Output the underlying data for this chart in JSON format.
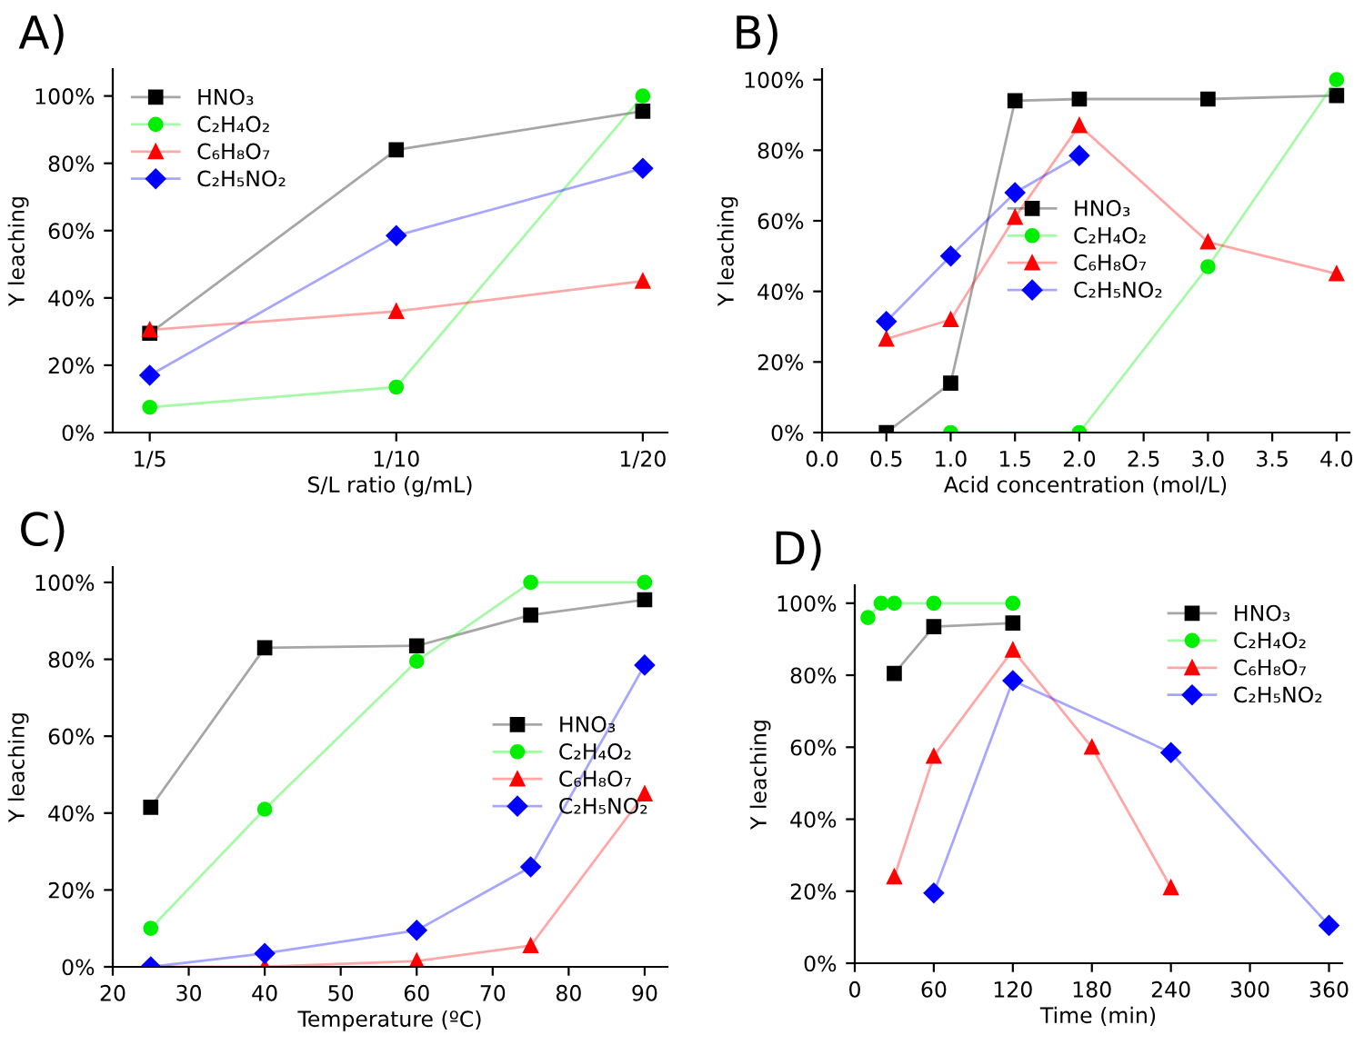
{
  "chart_data": [
    {
      "type": "line",
      "title": "A)",
      "xlabel": "S/L ratio (g/mL)",
      "ylabel": "Y leaching",
      "categories": [
        "1/5",
        "1/10",
        "1/20"
      ],
      "ylim": [
        0,
        108
      ],
      "yticks": [
        {
          "value": 0,
          "label": "0%"
        },
        {
          "value": 20,
          "label": "20%"
        },
        {
          "value": 40,
          "label": "40%"
        },
        {
          "value": 60,
          "label": "60%"
        },
        {
          "value": 80,
          "label": "80%"
        },
        {
          "value": 100,
          "label": "100%"
        }
      ],
      "legend": "top left",
      "grid": false,
      "series": [
        {
          "name": "HNO₃",
          "color": "#000000",
          "marker": "square",
          "values": [
            29.5,
            84,
            95.5
          ]
        },
        {
          "name": "C₂H₄O₂",
          "color": "#00ee00",
          "marker": "circle",
          "values": [
            7.5,
            13.5,
            100
          ]
        },
        {
          "name": "C₆H₈O₇",
          "color": "#ff0000",
          "marker": "triangle",
          "values": [
            30.5,
            36,
            45
          ]
        },
        {
          "name": "C₂H₅NO₂",
          "color": "#0000ff",
          "marker": "diamond",
          "values": [
            17,
            58.5,
            78.5
          ]
        }
      ]
    },
    {
      "type": "line",
      "title": "B)",
      "xlabel": "Acid concentration (mol/L)",
      "ylabel": "Y leaching",
      "xlim": [
        0,
        4.1
      ],
      "xticks": [
        {
          "value": 0,
          "label": "0.0"
        },
        {
          "value": 0.5,
          "label": "0.5"
        },
        {
          "value": 1,
          "label": "1.0"
        },
        {
          "value": 1.5,
          "label": "1.5"
        },
        {
          "value": 2,
          "label": "2.0"
        },
        {
          "value": 2.5,
          "label": "2.5"
        },
        {
          "value": 3,
          "label": "3.0"
        },
        {
          "value": 3.5,
          "label": "3.5"
        },
        {
          "value": 4,
          "label": "4.0"
        }
      ],
      "ylim": [
        0,
        103
      ],
      "yticks": [
        {
          "value": 0,
          "label": "0%"
        },
        {
          "value": 20,
          "label": "20%"
        },
        {
          "value": 40,
          "label": "40%"
        },
        {
          "value": 60,
          "label": "60%"
        },
        {
          "value": 80,
          "label": "80%"
        },
        {
          "value": 100,
          "label": "100%"
        }
      ],
      "legend": "center",
      "grid": false,
      "series": [
        {
          "name": "HNO₃",
          "color": "#000000",
          "marker": "square",
          "x": [
            0.5,
            1,
            1.5,
            2,
            3,
            4
          ],
          "values": [
            0,
            14,
            94,
            94.5,
            94.5,
            95.5
          ]
        },
        {
          "name": "C₂H₄O₂",
          "color": "#00ee00",
          "marker": "circle",
          "x": [
            1,
            2,
            3,
            4
          ],
          "values": [
            0,
            0,
            47,
            100
          ]
        },
        {
          "name": "C₆H₈O₇",
          "color": "#ff0000",
          "marker": "triangle",
          "x": [
            0.5,
            1,
            1.5,
            2,
            3,
            4
          ],
          "values": [
            26.5,
            32,
            61,
            87,
            54,
            45
          ]
        },
        {
          "name": "C₂H₅NO₂",
          "color": "#0000ff",
          "marker": "diamond",
          "x": [
            0.5,
            1,
            1.5,
            2
          ],
          "values": [
            31.5,
            50,
            68,
            78.5
          ]
        }
      ]
    },
    {
      "type": "line",
      "title": "C)",
      "xlabel": "Temperature (ºC)",
      "ylabel": "Y leaching",
      "xlim": [
        20,
        93
      ],
      "xticks": [
        20,
        30,
        40,
        50,
        60,
        70,
        80,
        90
      ],
      "ylim": [
        0,
        104
      ],
      "yticks": [
        {
          "value": 0,
          "label": "0%"
        },
        {
          "value": 20,
          "label": "20%"
        },
        {
          "value": 40,
          "label": "40%"
        },
        {
          "value": 60,
          "label": "60%"
        },
        {
          "value": 80,
          "label": "80%"
        },
        {
          "value": 100,
          "label": "100%"
        }
      ],
      "legend": "center right",
      "grid": false,
      "series": [
        {
          "name": "HNO₃",
          "color": "#000000",
          "marker": "square",
          "x": [
            25,
            40,
            60,
            75,
            90
          ],
          "values": [
            41.5,
            83,
            83.5,
            91.5,
            95.5
          ]
        },
        {
          "name": "C₂H₄O₂",
          "color": "#00ee00",
          "marker": "circle",
          "x": [
            25,
            40,
            60,
            75,
            90
          ],
          "values": [
            10,
            41,
            79.5,
            100,
            100
          ]
        },
        {
          "name": "C₆H₈O₇",
          "color": "#ff0000",
          "marker": "triangle",
          "x": [
            25,
            40,
            60,
            75,
            90
          ],
          "values": [
            0,
            0,
            1.5,
            5.5,
            45
          ]
        },
        {
          "name": "C₂H₅NO₂",
          "color": "#0000ff",
          "marker": "diamond",
          "x": [
            25,
            40,
            60,
            75,
            90
          ],
          "values": [
            0,
            3.5,
            9.5,
            26,
            78.5
          ]
        }
      ]
    },
    {
      "type": "line",
      "title": "D)",
      "xlabel": "Time (min)",
      "ylabel": "Y leaching",
      "xlim": [
        0,
        370
      ],
      "xticks": [
        0,
        60,
        120,
        180,
        240,
        300,
        360
      ],
      "ylim": [
        0,
        105
      ],
      "yticks": [
        {
          "value": 0,
          "label": "0%"
        },
        {
          "value": 20,
          "label": "20%"
        },
        {
          "value": 40,
          "label": "40%"
        },
        {
          "value": 60,
          "label": "60%"
        },
        {
          "value": 80,
          "label": "80%"
        },
        {
          "value": 100,
          "label": "100%"
        }
      ],
      "legend": "top right",
      "grid": false,
      "series": [
        {
          "name": "HNO₃",
          "color": "#000000",
          "marker": "square",
          "x": [
            30,
            60,
            120
          ],
          "values": [
            80.5,
            93.5,
            94.5
          ]
        },
        {
          "name": "C₂H₄O₂",
          "color": "#00ee00",
          "marker": "circle",
          "x": [
            10,
            20,
            30,
            60,
            120
          ],
          "values": [
            96,
            100,
            100,
            100,
            100
          ]
        },
        {
          "name": "C₆H₈O₇",
          "color": "#ff0000",
          "marker": "triangle",
          "x": [
            30,
            60,
            120,
            180,
            240
          ],
          "values": [
            24,
            57.5,
            87,
            60,
            21
          ]
        },
        {
          "name": "C₂H₅NO₂",
          "color": "#0000ff",
          "marker": "diamond",
          "x": [
            60,
            120,
            240,
            360
          ],
          "values": [
            19.5,
            78.5,
            58.5,
            10.5
          ]
        }
      ]
    }
  ]
}
